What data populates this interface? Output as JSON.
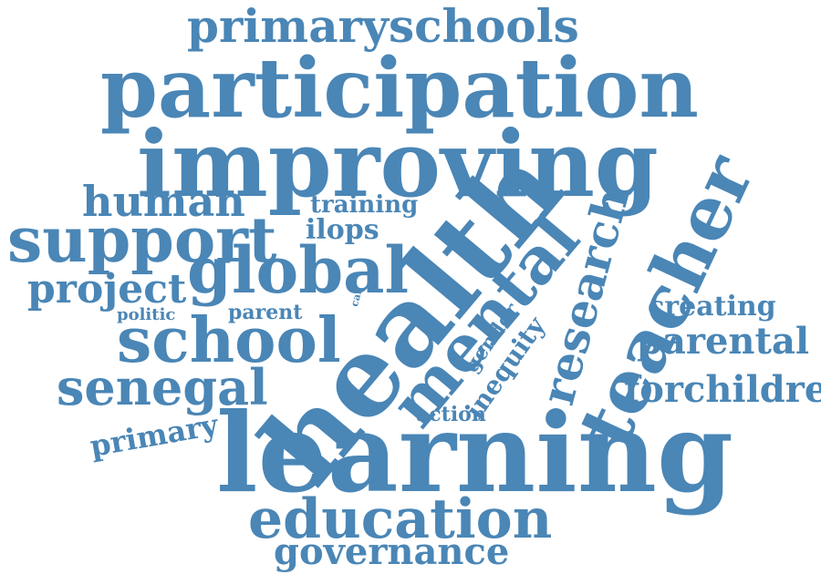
{
  "word_color": "#4a86b6",
  "background": "#ffffff",
  "words": {
    "primaryschools": "primaryschools",
    "participation": "participation",
    "improving": "improving",
    "human": "human",
    "training": "training",
    "support": "support",
    "ilops": "ilops",
    "global": "global",
    "project": "project",
    "politic": "politic",
    "parent": "parent",
    "call": "call",
    "school": "school",
    "senegal": "senegal",
    "primary": "primary",
    "health": "health",
    "mental": "mental",
    "gender": "gender",
    "inequity": "inequity",
    "research": "research",
    "teacher": "teacher",
    "creating": "creating",
    "parental": "parental",
    "forchildren": "forchildren",
    "action": "action",
    "learning": "learning",
    "education": "education",
    "governance": "governance"
  }
}
